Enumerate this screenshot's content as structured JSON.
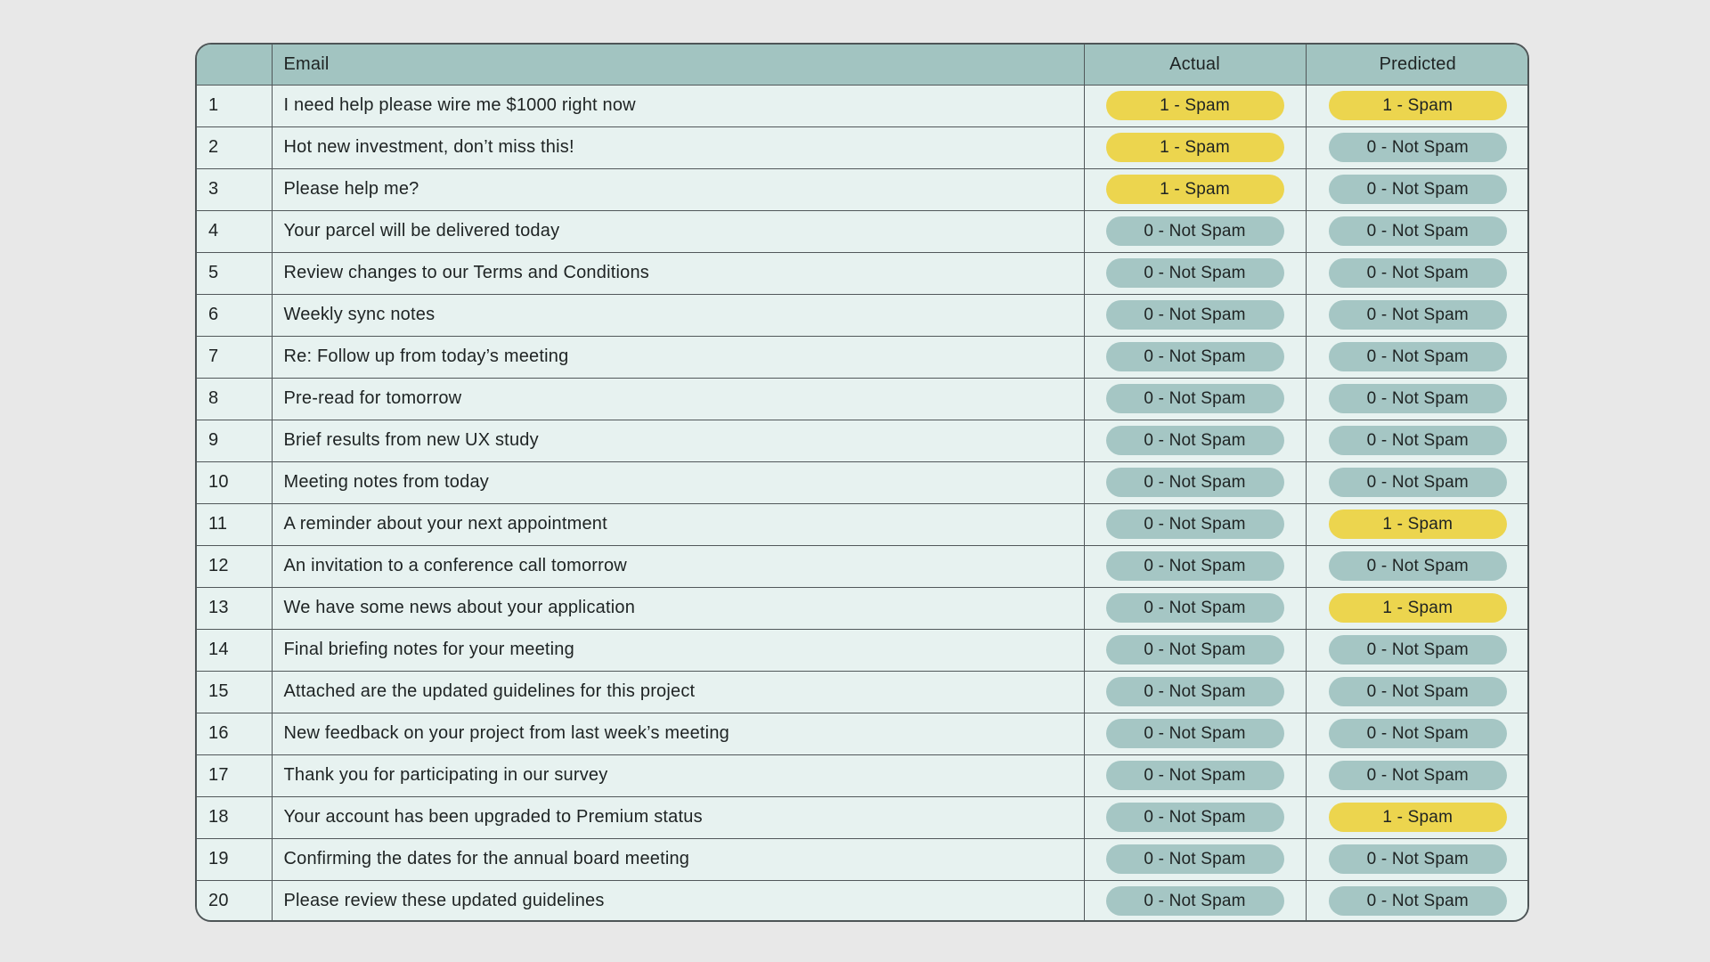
{
  "table": {
    "columns": {
      "index": "",
      "email": "Email",
      "actual": "Actual",
      "predicted": "Predicted"
    },
    "badge_labels": {
      "spam": "1 - Spam",
      "not_spam": "0 - Not Spam"
    },
    "colors": {
      "spam_badge": "#ecd54e",
      "not_spam_badge": "#a5c6c4",
      "header_bg": "#a2c4c1",
      "row_bg": "#e7f2f0",
      "page_bg": "#e8e8e8",
      "border": "#51585a",
      "text": "#1e2323"
    },
    "rows": [
      {
        "index": "1",
        "email": "I need help please wire me $1000 right now",
        "actual": "spam",
        "predicted": "spam"
      },
      {
        "index": "2",
        "email": "Hot new investment, don’t miss this!",
        "actual": "spam",
        "predicted": "not_spam"
      },
      {
        "index": "3",
        "email": "Please help me?",
        "actual": "spam",
        "predicted": "not_spam"
      },
      {
        "index": "4",
        "email": "Your parcel will be delivered today",
        "actual": "not_spam",
        "predicted": "not_spam"
      },
      {
        "index": "5",
        "email": "Review changes to our Terms and Conditions",
        "actual": "not_spam",
        "predicted": "not_spam"
      },
      {
        "index": "6",
        "email": "Weekly sync notes",
        "actual": "not_spam",
        "predicted": "not_spam"
      },
      {
        "index": "7",
        "email": "Re: Follow up from today’s meeting",
        "actual": "not_spam",
        "predicted": "not_spam"
      },
      {
        "index": "8",
        "email": "Pre-read for tomorrow",
        "actual": "not_spam",
        "predicted": "not_spam"
      },
      {
        "index": "9",
        "email": "Brief results from new UX study",
        "actual": "not_spam",
        "predicted": "not_spam"
      },
      {
        "index": "10",
        "email": "Meeting notes from today",
        "actual": "not_spam",
        "predicted": "not_spam"
      },
      {
        "index": "11",
        "email": "A reminder about your next appointment",
        "actual": "not_spam",
        "predicted": "spam"
      },
      {
        "index": "12",
        "email": "An invitation to a conference call tomorrow",
        "actual": "not_spam",
        "predicted": "not_spam"
      },
      {
        "index": "13",
        "email": "We have some news about your application",
        "actual": "not_spam",
        "predicted": "spam"
      },
      {
        "index": "14",
        "email": "Final briefing notes for your meeting",
        "actual": "not_spam",
        "predicted": "not_spam"
      },
      {
        "index": "15",
        "email": "Attached are the updated guidelines for this project",
        "actual": "not_spam",
        "predicted": "not_spam"
      },
      {
        "index": "16",
        "email": "New feedback on your project from last week’s meeting",
        "actual": "not_spam",
        "predicted": "not_spam"
      },
      {
        "index": "17",
        "email": "Thank you for participating in our survey",
        "actual": "not_spam",
        "predicted": "not_spam"
      },
      {
        "index": "18",
        "email": "Your account has been upgraded to Premium status",
        "actual": "not_spam",
        "predicted": "spam"
      },
      {
        "index": "19",
        "email": "Confirming the dates for the annual board meeting",
        "actual": "not_spam",
        "predicted": "not_spam"
      },
      {
        "index": "20",
        "email": "Please review these updated guidelines",
        "actual": "not_spam",
        "predicted": "not_spam"
      }
    ]
  }
}
